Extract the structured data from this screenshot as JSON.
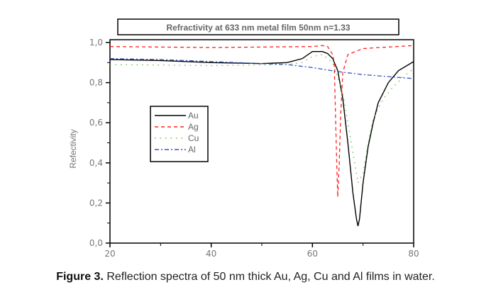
{
  "chart_data": {
    "type": "line",
    "title": "Refractivity at 633 nm metal film 50nm n=1.33",
    "xlabel": "",
    "ylabel": "Refectivity",
    "xlim": [
      20,
      80
    ],
    "ylim": [
      0,
      1.0
    ],
    "xticks": [
      20,
      40,
      60,
      80
    ],
    "xtick_labels": [
      "20",
      "40",
      "60",
      "80"
    ],
    "yticks": [
      0,
      0.2,
      0.4,
      0.6,
      0.8,
      1.0
    ],
    "ytick_labels": [
      "0,0",
      "0,2",
      "0,4",
      "0,6",
      "0,8",
      "1,0"
    ],
    "legend_position": "center-left",
    "grid": false,
    "series": [
      {
        "name": "Au",
        "color": "#000000",
        "dash": "solid",
        "x": [
          20,
          30,
          40,
          50,
          55,
          58,
          60,
          62,
          63,
          64,
          65,
          66,
          67,
          68,
          68.7,
          69,
          69.3,
          70,
          71,
          72,
          73,
          75,
          77,
          80
        ],
        "y": [
          0.915,
          0.91,
          0.9,
          0.895,
          0.9,
          0.92,
          0.955,
          0.955,
          0.945,
          0.92,
          0.86,
          0.72,
          0.5,
          0.25,
          0.12,
          0.085,
          0.12,
          0.3,
          0.48,
          0.6,
          0.7,
          0.8,
          0.86,
          0.905
        ]
      },
      {
        "name": "Ag",
        "color": "#ff2020",
        "dash": "dash",
        "x": [
          20,
          40,
          60,
          62,
          63,
          64,
          64.3,
          64.6,
          64.8,
          65,
          65.3,
          65.6,
          66,
          67,
          70,
          80
        ],
        "y": [
          0.98,
          0.975,
          0.98,
          0.985,
          0.98,
          0.94,
          0.9,
          0.6,
          0.4,
          0.23,
          0.4,
          0.65,
          0.85,
          0.94,
          0.97,
          0.985
        ]
      },
      {
        "name": "Cu",
        "color": "#66bb44",
        "dash": "dot",
        "x": [
          20,
          40,
          55,
          58,
          60,
          62,
          64,
          66,
          68,
          69,
          70,
          71,
          72,
          74,
          76,
          78,
          80
        ],
        "y": [
          0.89,
          0.885,
          0.89,
          0.9,
          0.93,
          0.94,
          0.9,
          0.75,
          0.45,
          0.3,
          0.35,
          0.5,
          0.62,
          0.72,
          0.78,
          0.83,
          0.87
        ]
      },
      {
        "name": "Al",
        "color": "#3355bb",
        "dash": "dashdot",
        "x": [
          20,
          30,
          40,
          50,
          55,
          60,
          65,
          70,
          75,
          80
        ],
        "y": [
          0.92,
          0.915,
          0.905,
          0.895,
          0.89,
          0.875,
          0.855,
          0.84,
          0.83,
          0.82
        ]
      }
    ]
  },
  "caption": {
    "label": "Figure 3.",
    "text": " Reflection spectra of 50 nm thick Au, Ag, Cu and Al films in water."
  }
}
